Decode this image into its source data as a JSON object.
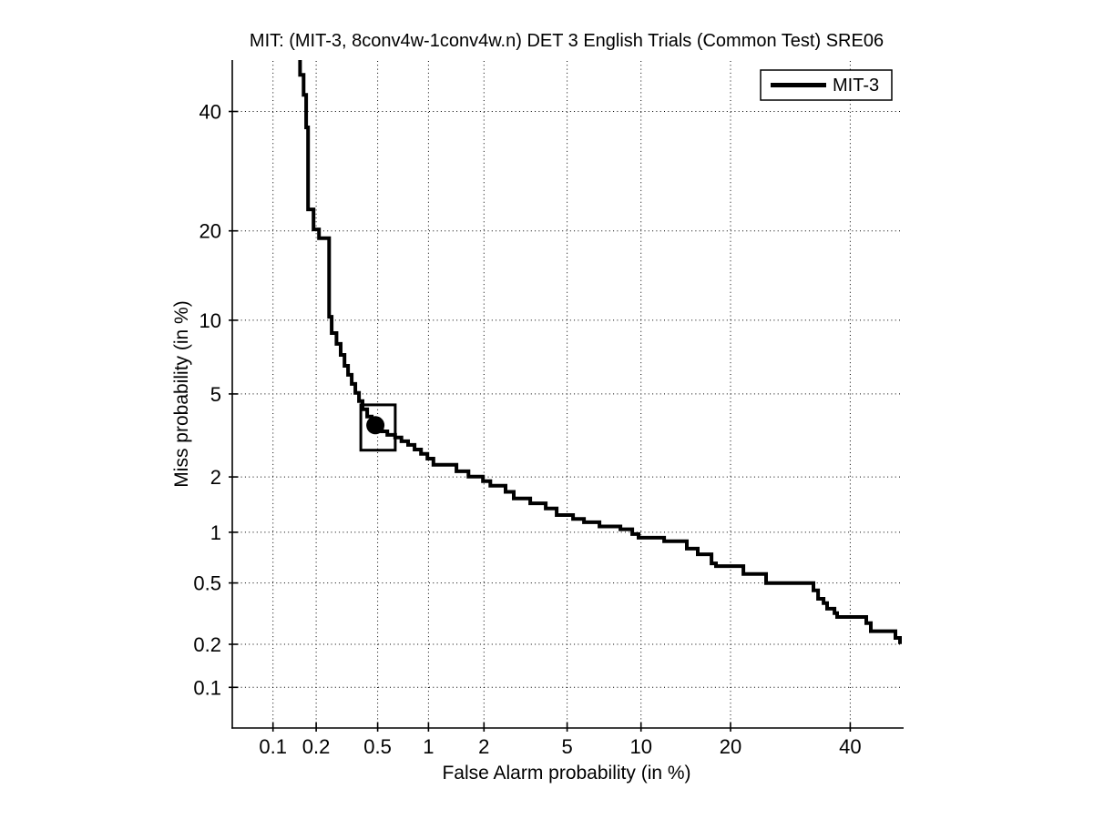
{
  "chart_data": {
    "type": "line",
    "chart_kind": "DET curve (Detection Error Tradeoff)",
    "title": "MIT: (MIT-3, 8conv4w-1conv4w.n) DET 3 English Trials (Common Test) SRE06",
    "xlabel": "False Alarm probability (in %)",
    "ylabel": "Miss probability (in %)",
    "axis_scale": "normal-deviate (probit) on both axes",
    "grid": "dotted",
    "background": "#ffffff",
    "line_color": "#000000",
    "xlim_pct": [
      0.05,
      50
    ],
    "ylim_pct": [
      0.05,
      50
    ],
    "xtick_values_pct": [
      0.1,
      0.2,
      0.5,
      1,
      2,
      5,
      10,
      20,
      40
    ],
    "xtick_labels": [
      "0.1",
      "0.2",
      "0.5",
      "1",
      "2",
      "5",
      "10",
      "20",
      "40"
    ],
    "ytick_values_pct": [
      0.1,
      0.2,
      0.5,
      1,
      2,
      5,
      10,
      20,
      40
    ],
    "ytick_labels": [
      "0.1",
      "0.2",
      "0.5",
      "1",
      "2",
      "5",
      "10",
      "20",
      "40"
    ],
    "legend": {
      "position": "top-right",
      "entries": [
        {
          "label": "MIT-3",
          "color": "#000000"
        }
      ]
    },
    "series": [
      {
        "name": "MIT-3",
        "step_render": "horizontal-then-vertical",
        "points_fa_miss_pct": [
          [
            0.155,
            50
          ],
          [
            0.155,
            47.1
          ],
          [
            0.164,
            43.2
          ],
          [
            0.171,
            37.0
          ],
          [
            0.176,
            23.1
          ],
          [
            0.192,
            20.2
          ],
          [
            0.209,
            19.0
          ],
          [
            0.244,
            10.3
          ],
          [
            0.254,
            8.93
          ],
          [
            0.273,
            8.1
          ],
          [
            0.291,
            7.32
          ],
          [
            0.308,
            6.6
          ],
          [
            0.325,
            6.05
          ],
          [
            0.343,
            5.53
          ],
          [
            0.362,
            5.05
          ],
          [
            0.382,
            4.65
          ],
          [
            0.402,
            4.27
          ],
          [
            0.43,
            3.95
          ],
          [
            0.459,
            3.72
          ],
          [
            0.491,
            3.51
          ],
          [
            0.531,
            3.37
          ],
          [
            0.573,
            3.24
          ],
          [
            0.639,
            3.15
          ],
          [
            0.696,
            3.02
          ],
          [
            0.762,
            2.9
          ],
          [
            0.832,
            2.75
          ],
          [
            0.907,
            2.62
          ],
          [
            0.986,
            2.48
          ],
          [
            1.067,
            2.31
          ],
          [
            1.431,
            2.14
          ],
          [
            1.66,
            2.01
          ],
          [
            1.977,
            1.9
          ],
          [
            2.157,
            1.8
          ],
          [
            2.575,
            1.67
          ],
          [
            2.825,
            1.54
          ],
          [
            3.393,
            1.45
          ],
          [
            4.006,
            1.36
          ],
          [
            4.492,
            1.25
          ],
          [
            5.308,
            1.19
          ],
          [
            5.916,
            1.14
          ],
          [
            6.864,
            1.08
          ],
          [
            8.336,
            1.04
          ],
          [
            9.262,
            0.977
          ],
          [
            9.789,
            0.931
          ],
          [
            12.14,
            0.888
          ],
          [
            14.54,
            0.804
          ],
          [
            15.8,
            0.745
          ],
          [
            17.48,
            0.658
          ],
          [
            18.06,
            0.633
          ],
          [
            21.81,
            0.567
          ],
          [
            25.24,
            0.499
          ],
          [
            33.21,
            0.449
          ],
          [
            34.03,
            0.398
          ],
          [
            35.02,
            0.373
          ],
          [
            35.68,
            0.344
          ],
          [
            37.03,
            0.322
          ],
          [
            37.53,
            0.304
          ],
          [
            43.07,
            0.277
          ],
          [
            43.95,
            0.245
          ],
          [
            48.75,
            0.221
          ],
          [
            49.64,
            0.201
          ]
        ]
      }
    ],
    "operating_point_marker": {
      "fa_pct": 0.484,
      "miss_pct": 3.6,
      "shape": "filled-dot"
    },
    "operating_region_box": {
      "fa_pct_range": [
        0.392,
        0.639
      ],
      "miss_pct_range": [
        2.73,
        4.47
      ]
    }
  }
}
